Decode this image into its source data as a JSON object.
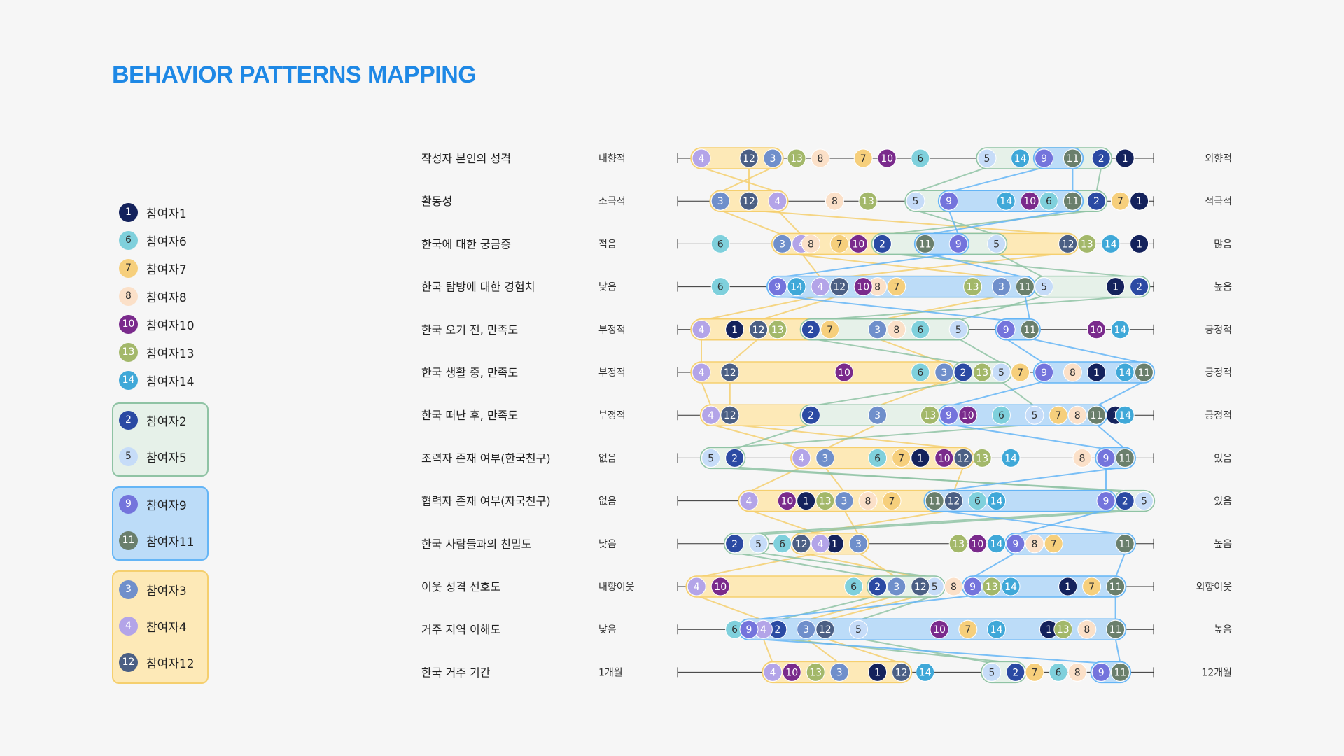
{
  "title": "BEHAVIOR PATTERNS MAPPING",
  "colors": {
    "p1": "#14225c",
    "p2": "#2b4aa3",
    "p3": "#6f8fcb",
    "p4": "#b3a4e8",
    "p5": "#c6dcf8",
    "p6": "#7fd0dc",
    "p7": "#f6cf7c",
    "p8": "#fbe0c8",
    "p9": "#7474dc",
    "p10": "#7a2a8c",
    "p11": "#6a7f6c",
    "p12": "#4b5f84",
    "p13": "#a3b86a",
    "p14": "#3fa8d8",
    "greenGroupFill": "#e6f1e9",
    "greenGroupStroke": "#8fc3a4",
    "blueGroupFill": "#bcdcf8",
    "blueGroupStroke": "#64b5f6",
    "yellowGroupFill": "#fde9b7",
    "yellowGroupStroke": "#f5cf6e",
    "title": "#1e88e5"
  },
  "legend": {
    "singles": [
      {
        "id": "1",
        "label": "참여자1"
      },
      {
        "id": "6",
        "label": "참여자6"
      },
      {
        "id": "7",
        "label": "참여자7"
      },
      {
        "id": "8",
        "label": "참여자8"
      },
      {
        "id": "10",
        "label": "참여자10"
      },
      {
        "id": "13",
        "label": "참여자13"
      },
      {
        "id": "14",
        "label": "참여자14"
      }
    ],
    "groups": [
      {
        "color": "green",
        "members": [
          {
            "id": "2",
            "label": "참여자2"
          },
          {
            "id": "5",
            "label": "참여자5"
          }
        ]
      },
      {
        "color": "blue",
        "members": [
          {
            "id": "9",
            "label": "참여자9"
          },
          {
            "id": "11",
            "label": "참여자11"
          }
        ]
      },
      {
        "color": "yellow",
        "members": [
          {
            "id": "3",
            "label": "참여자3"
          },
          {
            "id": "4",
            "label": "참여자4"
          },
          {
            "id": "12",
            "label": "참여자12"
          }
        ]
      }
    ]
  },
  "chart_data": {
    "type": "diagram",
    "scale": [
      0,
      100
    ],
    "rows": [
      {
        "label": "작성자 본인의 성격",
        "left": "내향적",
        "right": "외향적",
        "p": {
          "4": 5,
          "12": 15,
          "3": 20,
          "13": 25,
          "8": 30,
          "7": 39,
          "10": 44,
          "6": 51,
          "5": 65,
          "14": 72,
          "9": 77,
          "11": 83,
          "2": 89,
          "1": 94
        }
      },
      {
        "label": "활동성",
        "left": "소극적",
        "right": "적극적",
        "p": {
          "3": 9,
          "12": 15,
          "4": 21,
          "8": 33,
          "13": 40,
          "5": 50,
          "9": 57,
          "14": 69,
          "10": 74,
          "6": 78,
          "11": 83,
          "2": 88,
          "7": 93,
          "1": 97
        }
      },
      {
        "label": "한국에 대한 궁금증",
        "left": "적음",
        "right": "많음",
        "p": {
          "6": 9,
          "3": 22,
          "4": 26,
          "8": 28,
          "7": 34,
          "10": 38,
          "2": 43,
          "11": 52,
          "9": 59,
          "5": 67,
          "12": 82,
          "13": 86,
          "14": 91,
          "1": 97
        }
      },
      {
        "label": "한국 탐방에 대한 경험치",
        "left": "낮음",
        "right": "높음",
        "p": {
          "6": 9,
          "9": 21,
          "14": 25,
          "4": 30,
          "12": 34,
          "10": 39,
          "8": 42,
          "7": 46,
          "13": 62,
          "3": 68,
          "11": 73,
          "5": 77,
          "1": 92,
          "2": 97
        }
      },
      {
        "label": "한국 오기 전, 만족도",
        "left": "부정적",
        "right": "긍정적",
        "p": {
          "4": 5,
          "1": 12,
          "12": 17,
          "13": 21,
          "2": 28,
          "7": 32,
          "3": 42,
          "8": 46,
          "6": 51,
          "5": 59,
          "9": 69,
          "11": 74,
          "10": 88,
          "14": 93
        }
      },
      {
        "label": "한국 생활 중, 만족도",
        "left": "부정적",
        "right": "긍정적",
        "p": {
          "4": 5,
          "12": 11,
          "10": 35,
          "6": 51,
          "3": 56,
          "2": 60,
          "13": 64,
          "5": 68,
          "7": 72,
          "9": 77,
          "8": 83,
          "1": 88,
          "14": 94,
          "11": 98
        }
      },
      {
        "label": "한국 떠난 후, 만족도",
        "left": "부정적",
        "right": "긍정적",
        "p": {
          "4": 7,
          "12": 11,
          "2": 28,
          "3": 42,
          "13": 53,
          "9": 57,
          "10": 61,
          "6": 68,
          "5": 75,
          "7": 80,
          "8": 84,
          "11": 88,
          "1": 92,
          "14": 94
        }
      },
      {
        "label": "조력자 존재 여부(한국친구)",
        "left": "없음",
        "right": "있음",
        "p": {
          "5": 7,
          "2": 12,
          "4": 26,
          "3": 31,
          "6": 42,
          "7": 47,
          "1": 51,
          "10": 56,
          "12": 60,
          "13": 64,
          "14": 70,
          "8": 85,
          "9": 90,
          "11": 94
        }
      },
      {
        "label": "협력자 존재 여부(자국친구)",
        "left": "없음",
        "right": "있음",
        "p": {
          "4": 15,
          "10": 23,
          "1": 27,
          "13": 31,
          "3": 35,
          "8": 40,
          "7": 45,
          "11": 54,
          "12": 58,
          "6": 63,
          "14": 67,
          "9": 90,
          "2": 94,
          "5": 98
        }
      },
      {
        "label": "한국 사람들과의 친밀도",
        "left": "낮음",
        "right": "높음",
        "p": {
          "2": 12,
          "5": 17,
          "6": 22,
          "12": 26,
          "4": 30,
          "1": 33,
          "3": 38,
          "13": 59,
          "10": 63,
          "14": 67,
          "9": 71,
          "8": 75,
          "7": 79,
          "11": 94
        }
      },
      {
        "label": "이웃 성격 선호도",
        "left": "내향이웃",
        "right": "외향이웃",
        "p": {
          "4": 4,
          "10": 9,
          "6": 37,
          "2": 42,
          "3": 46,
          "12": 51,
          "5": 54,
          "8": 58,
          "9": 62,
          "13": 66,
          "14": 70,
          "1": 82,
          "7": 87,
          "11": 92
        }
      },
      {
        "label": "거주 지역 이해도",
        "left": "낮음",
        "right": "높음",
        "p": {
          "6": 12,
          "9": 15,
          "4": 18,
          "2": 21,
          "3": 27,
          "12": 31,
          "5": 38,
          "10": 55,
          "7": 61,
          "14": 67,
          "1": 78,
          "13": 81,
          "8": 86,
          "11": 92
        }
      },
      {
        "label": "한국 거주 기간",
        "left": "1개월",
        "right": "12개월",
        "p": {
          "4": 20,
          "10": 24,
          "13": 29,
          "3": 34,
          "1": 42,
          "12": 47,
          "14": 52,
          "5": 66,
          "2": 71,
          "7": 75,
          "6": 80,
          "8": 84,
          "9": 89,
          "11": 93
        }
      }
    ]
  }
}
